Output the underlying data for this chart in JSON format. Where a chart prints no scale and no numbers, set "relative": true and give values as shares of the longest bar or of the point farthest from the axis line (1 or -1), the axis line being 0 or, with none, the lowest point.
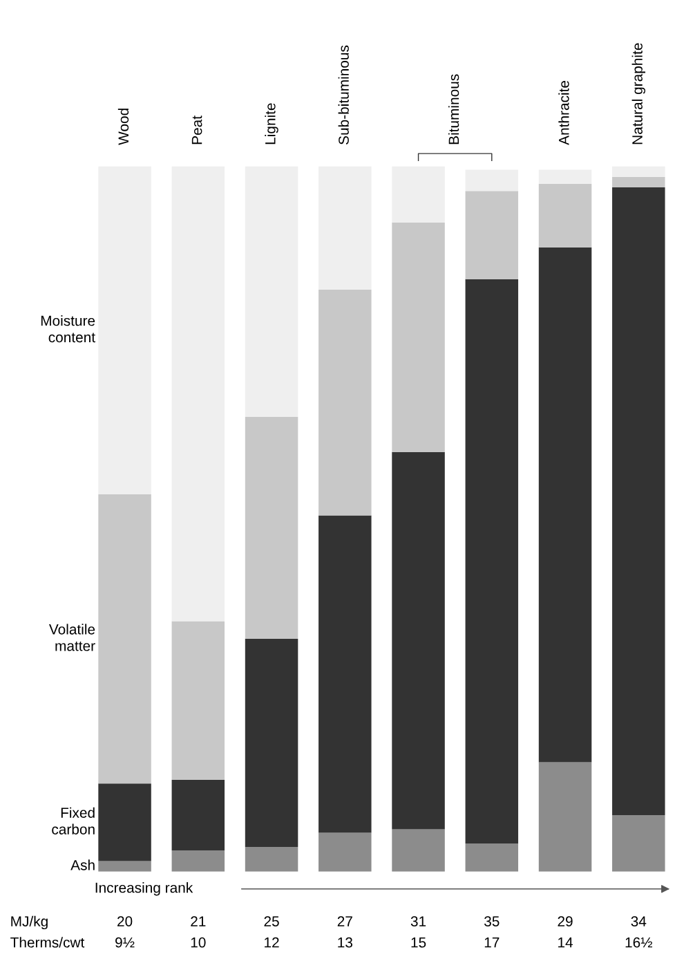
{
  "chart_data": {
    "type": "bar",
    "stacked": true,
    "relative": true,
    "categories": [
      "Wood",
      "Peat",
      "Lignite",
      "Sub-bituminous",
      "Bituminous",
      null,
      "Anthracite",
      "Natural graphite"
    ],
    "series": [
      {
        "name": "Ash",
        "color": "#8c8c8c",
        "values": [
          0.015,
          0.03,
          0.035,
          0.055,
          0.06,
          0.04,
          0.155,
          0.08
        ]
      },
      {
        "name": "Fixed\ncarbon",
        "color": "#333333",
        "values": [
          0.11,
          0.1,
          0.295,
          0.45,
          0.535,
          0.8,
          0.73,
          0.89
        ]
      },
      {
        "name": "Volatile\nmatter",
        "color": "#c8c8c8",
        "values": [
          0.41,
          0.225,
          0.315,
          0.32,
          0.325,
          0.125,
          0.09,
          0.015
        ]
      },
      {
        "name": "Moisture\ncontent",
        "color": "#efefef",
        "values": [
          0.465,
          0.645,
          0.355,
          0.175,
          0.08,
          0.03,
          0.02,
          0.015
        ]
      }
    ],
    "annotations": [
      "Increasing rank",
      "MJ/kg",
      "20",
      "21",
      "25",
      "27",
      "31",
      "35",
      "29",
      "34",
      "Therms/cwt",
      "9½",
      "10",
      "12",
      "13",
      "15",
      "17",
      "14",
      "16½"
    ],
    "legend": false
  }
}
